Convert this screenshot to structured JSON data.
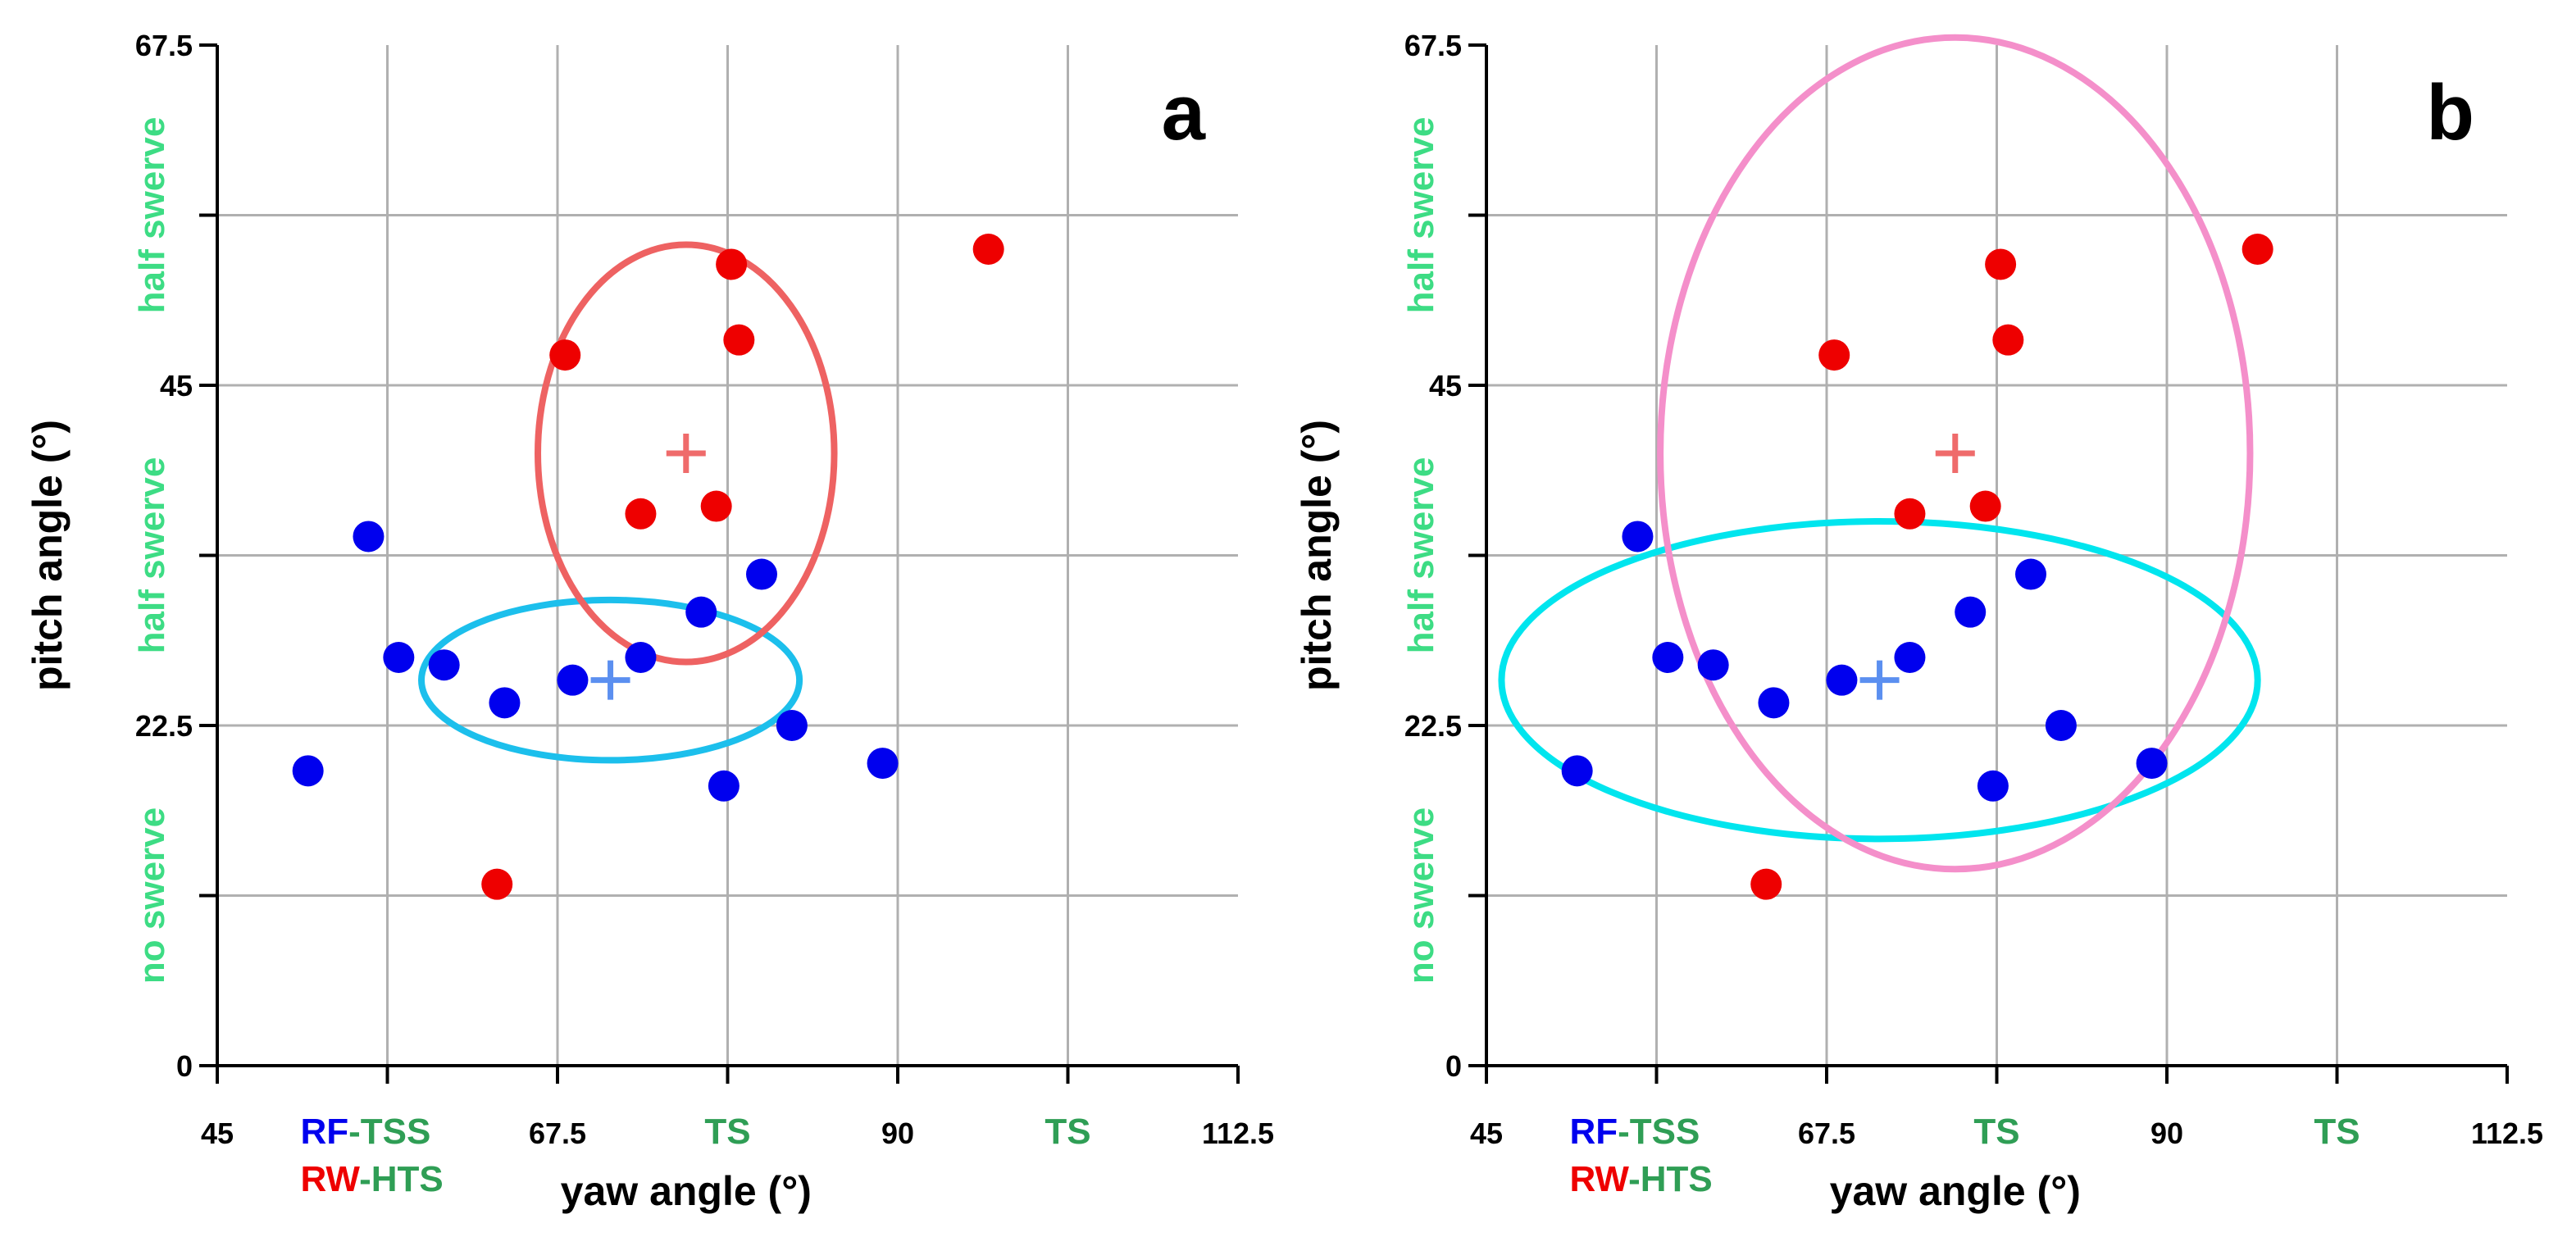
{
  "chart_data": [
    {
      "type": "scatter",
      "panel_label": "a",
      "xlabel": "yaw angle (°)",
      "ylabel": "pitch angle (°)",
      "xlim": [
        45,
        112.5
      ],
      "ylim": [
        0,
        67.5
      ],
      "x_ticks": [
        "45",
        "67.5",
        "90",
        "112.5"
      ],
      "y_ticks": [
        "0",
        "22.5",
        "45",
        "67.5"
      ],
      "grid": true,
      "y_zone_labels": [
        "no swerve",
        "half swerve",
        "half swerve"
      ],
      "x_zone_labels": [
        "TS",
        "TS"
      ],
      "legend_lines": [
        {
          "series": "RF",
          "suffix": "-TSS"
        },
        {
          "series": "RW",
          "suffix": "-HTS"
        }
      ],
      "series": [
        {
          "name": "RF",
          "color": "#0000ee",
          "points": [
            [
              51,
              19.5
            ],
            [
              55,
              35
            ],
            [
              57,
              27
            ],
            [
              60,
              26.5
            ],
            [
              64,
              24
            ],
            [
              68.5,
              25.5
            ],
            [
              73,
              27
            ],
            [
              77,
              30
            ],
            [
              81,
              32.5
            ],
            [
              83,
              22.5
            ],
            [
              89,
              20
            ],
            [
              78.5,
              18.5
            ]
          ],
          "mean": [
            71,
            25.5
          ],
          "mean_color": "#5b8ff0",
          "ellipse": {
            "cx": 71,
            "cy": 25.5,
            "rx": 12.5,
            "ry": 5.3,
            "color": "#1cbfec"
          }
        },
        {
          "name": "RW",
          "color": "#ee0000",
          "points": [
            [
              63.5,
              12
            ],
            [
              68,
              47
            ],
            [
              73,
              36.5
            ],
            [
              78,
              37
            ],
            [
              79,
              53
            ],
            [
              79.5,
              48
            ],
            [
              96,
              54
            ]
          ],
          "mean": [
            76,
            40.5
          ],
          "mean_color": "#ef6b6b",
          "ellipse": {
            "cx": 76,
            "cy": 40.5,
            "rx": 9.8,
            "ry": 13.8,
            "color": "#ee6262"
          }
        }
      ]
    },
    {
      "type": "scatter",
      "panel_label": "b",
      "xlabel": "yaw angle (°)",
      "ylabel": "pitch angle (°)",
      "xlim": [
        45,
        112.5
      ],
      "ylim": [
        0,
        67.5
      ],
      "x_ticks": [
        "45",
        "67.5",
        "90",
        "112.5"
      ],
      "y_ticks": [
        "0",
        "22.5",
        "45",
        "67.5"
      ],
      "grid": true,
      "y_zone_labels": [
        "no swerve",
        "half swerve",
        "half swerve"
      ],
      "x_zone_labels": [
        "TS",
        "TS"
      ],
      "legend_lines": [
        {
          "series": "RF",
          "suffix": "-TSS"
        },
        {
          "series": "RW",
          "suffix": "-HTS"
        }
      ],
      "series": [
        {
          "name": "RF",
          "color": "#0000ee",
          "points": [
            [
              51,
              19.5
            ],
            [
              55,
              35
            ],
            [
              57,
              27
            ],
            [
              60,
              26.5
            ],
            [
              64,
              24
            ],
            [
              68.5,
              25.5
            ],
            [
              73,
              27
            ],
            [
              77,
              30
            ],
            [
              81,
              32.5
            ],
            [
              83,
              22.5
            ],
            [
              89,
              20
            ],
            [
              78.5,
              18.5
            ]
          ],
          "mean": [
            71,
            25.5
          ],
          "mean_color": "#5b8ff0",
          "ellipse": {
            "cx": 71,
            "cy": 25.5,
            "rx": 25,
            "ry": 10.5,
            "color": "#00e5ee"
          }
        },
        {
          "name": "RW",
          "color": "#ee0000",
          "points": [
            [
              63.5,
              12
            ],
            [
              68,
              47
            ],
            [
              73,
              36.5
            ],
            [
              78,
              37
            ],
            [
              79,
              53
            ],
            [
              79.5,
              48
            ],
            [
              96,
              54
            ]
          ],
          "mean": [
            76,
            40.5
          ],
          "mean_color": "#ef6b6b",
          "ellipse": {
            "cx": 76,
            "cy": 40.5,
            "rx": 19.5,
            "ry": 27.5,
            "color": "#f48fca"
          }
        }
      ]
    }
  ],
  "colors": {
    "zone_label": "#3ddc84",
    "x_zone_label": "#2f9e55",
    "legend_suffix": "#2f9e55",
    "grid": "#b0b0b0",
    "axis": "#000000"
  }
}
